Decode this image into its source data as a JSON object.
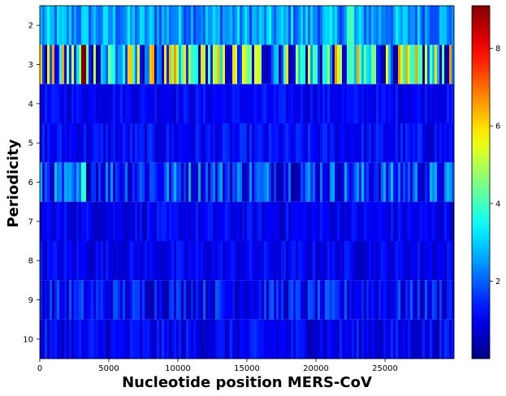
{
  "chart_data": {
    "type": "heatmap",
    "title": "",
    "xlabel": "Nucleotide position MERS-CoV",
    "ylabel": "Periodicity",
    "colormap": "jet",
    "x_range": [
      0,
      30000
    ],
    "x_ticks": [
      0,
      5000,
      10000,
      15000,
      20000,
      25000
    ],
    "x_tick_labels": [
      "0",
      "5000",
      "10000",
      "15000",
      "20000",
      "25000"
    ],
    "rows": [
      2,
      3,
      4,
      5,
      6,
      7,
      8,
      9,
      10
    ],
    "row_labels": [
      "2",
      "3",
      "4",
      "5",
      "6",
      "7",
      "8",
      "9",
      "10"
    ],
    "colorbar": {
      "range": [
        0,
        9.1
      ],
      "ticks": [
        2,
        4,
        6,
        8
      ],
      "tick_labels": [
        "2",
        "4",
        "6",
        "8"
      ]
    },
    "row_summary": [
      {
        "periodicity": 2,
        "mean": 2.5,
        "max": 4.0
      },
      {
        "periodicity": 3,
        "mean": 3.0,
        "max": 9.1
      },
      {
        "periodicity": 4,
        "mean": 1.1,
        "max": 1.8
      },
      {
        "periodicity": 5,
        "mean": 1.1,
        "max": 2.0
      },
      {
        "periodicity": 6,
        "mean": 1.6,
        "max": 3.8
      },
      {
        "periodicity": 7,
        "mean": 1.0,
        "max": 1.8
      },
      {
        "periodicity": 8,
        "mean": 1.0,
        "max": 1.8
      },
      {
        "periodicity": 9,
        "mean": 1.2,
        "max": 2.6
      },
      {
        "periodicity": 10,
        "mean": 1.0,
        "max": 2.0
      }
    ],
    "peaks": [
      {
        "periodicity": 3,
        "position": 3200,
        "value": 9.1
      },
      {
        "periodicity": 6,
        "position": 3200,
        "value": 3.8
      },
      {
        "periodicity": 3,
        "position": 22500,
        "value": 4.0
      },
      {
        "periodicity": 2,
        "position": 22500,
        "value": 4.0
      },
      {
        "periodicity": 3,
        "position": 27000,
        "value": 3.8
      }
    ]
  }
}
